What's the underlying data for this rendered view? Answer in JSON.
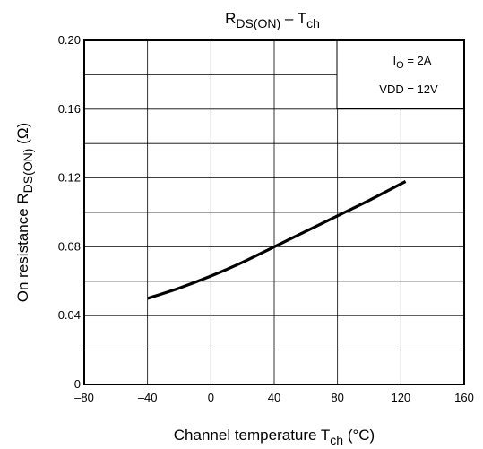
{
  "chart_data": {
    "type": "line",
    "title": {
      "main": "R",
      "sub1": "DS(ON)",
      "dash": " – T",
      "sub2": "ch"
    },
    "xlabel": {
      "main": "Channel temperature   T",
      "sub": "ch",
      "unit": "   (°C)"
    },
    "ylabel": {
      "part1": "On resistance   R",
      "sub": "DS(ON)",
      "unit": "   (Ω)"
    },
    "xlim": [
      -80,
      160
    ],
    "ylim": [
      0,
      0.2
    ],
    "x_ticks": [
      -80,
      -40,
      0,
      40,
      80,
      120,
      160
    ],
    "x_tick_labels": [
      "–80",
      "–40",
      "0",
      "40",
      "80",
      "120",
      "160"
    ],
    "y_ticks": [
      0,
      0.04,
      0.08,
      0.12,
      0.16,
      0.2
    ],
    "y_tick_labels": [
      "0",
      "0.04",
      "0.08",
      "0.12",
      "0.16",
      "0.20"
    ],
    "x_gridlines": [
      -40,
      0,
      40,
      80,
      120
    ],
    "y_gridlines": [
      0.02,
      0.04,
      0.06,
      0.08,
      0.1,
      0.12,
      0.14,
      0.16,
      0.18
    ],
    "grid": true,
    "series": [
      {
        "x": [
          -40,
          -20,
          0,
          20,
          40,
          60,
          80,
          100,
          123
        ],
        "y": [
          0.05,
          0.056,
          0.063,
          0.071,
          0.08,
          0.089,
          0.098,
          0.107,
          0.118
        ]
      }
    ],
    "annotations": {
      "placement": "top-right",
      "line1": {
        "main": "I",
        "sub": "O",
        "rest": " = 2A"
      },
      "line2": {
        "text": "VDD = 12V"
      }
    },
    "colors": {
      "line": "#000000",
      "grid": "#000000",
      "background": "#ffffff"
    }
  }
}
